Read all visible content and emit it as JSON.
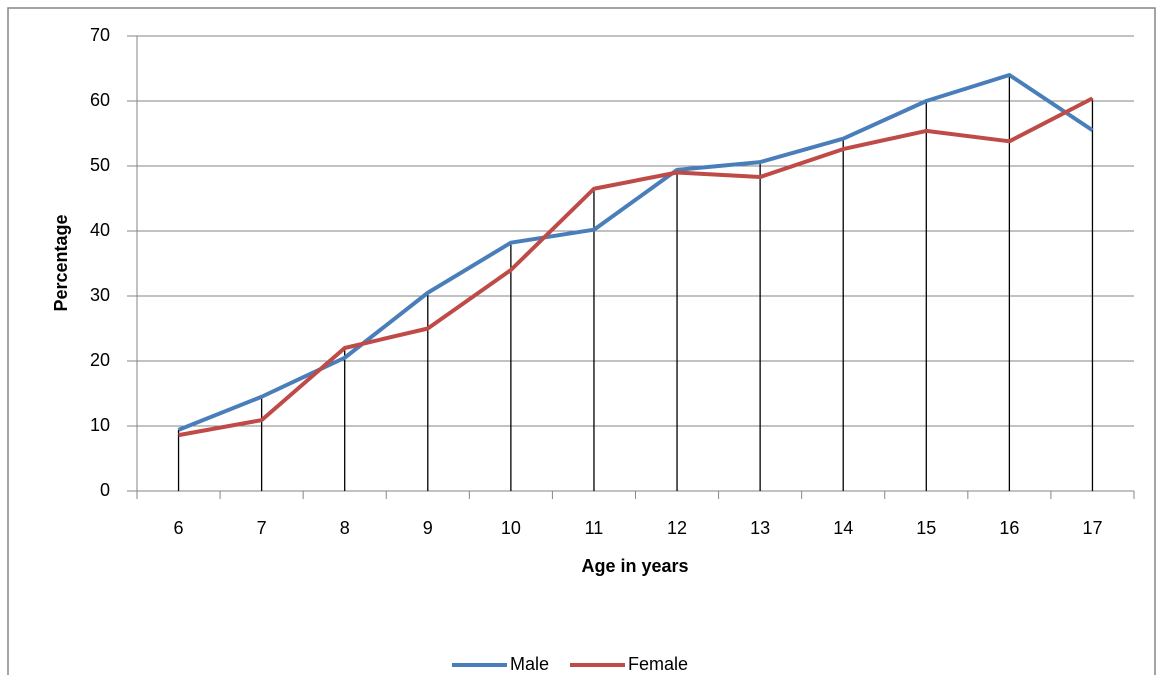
{
  "chart_data": {
    "type": "line",
    "x_label": "Age in years",
    "y_label": "Percentage",
    "categories": [
      "6",
      "7",
      "8",
      "9",
      "10",
      "11",
      "12",
      "13",
      "14",
      "15",
      "16",
      "17"
    ],
    "series": [
      {
        "name": "Male",
        "color": "#4a7ebb",
        "values": [
          9.4,
          14.5,
          20.5,
          30.5,
          38.2,
          40.2,
          49.4,
          50.6,
          54.2,
          60,
          64,
          55.5
        ]
      },
      {
        "name": "Female",
        "color": "#be4b48",
        "values": [
          8.6,
          10.9,
          22,
          25,
          34,
          46.5,
          49,
          48.3,
          52.6,
          55.4,
          53.8,
          60.4
        ]
      }
    ],
    "ylim": [
      0,
      70
    ],
    "yticks": [
      0,
      10,
      20,
      30,
      40,
      50,
      60,
      70
    ],
    "grid": true,
    "drop_lines": true,
    "legend": "bottom"
  }
}
